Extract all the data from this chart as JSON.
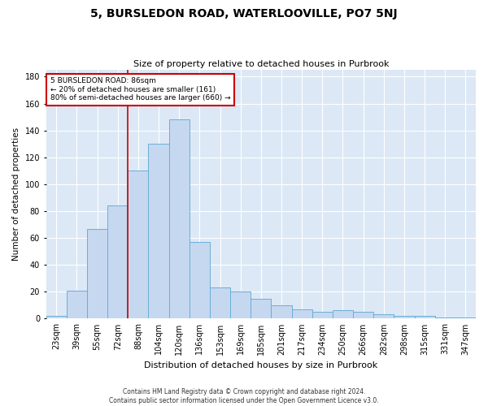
{
  "title": "5, BURSLEDON ROAD, WATERLOOVILLE, PO7 5NJ",
  "subtitle": "Size of property relative to detached houses in Purbrook",
  "xlabel": "Distribution of detached houses by size in Purbrook",
  "ylabel": "Number of detached properties",
  "categories": [
    "23sqm",
    "39sqm",
    "55sqm",
    "72sqm",
    "88sqm",
    "104sqm",
    "120sqm",
    "136sqm",
    "153sqm",
    "169sqm",
    "185sqm",
    "201sqm",
    "217sqm",
    "234sqm",
    "250sqm",
    "266sqm",
    "282sqm",
    "298sqm",
    "315sqm",
    "331sqm",
    "347sqm"
  ],
  "values": [
    2,
    21,
    67,
    84,
    110,
    130,
    148,
    57,
    23,
    20,
    15,
    10,
    7,
    5,
    6,
    5,
    3,
    2,
    2,
    1,
    1
  ],
  "bar_color": "#c5d8f0",
  "bar_edge_color": "#6baed6",
  "red_line_index": 4,
  "annotation_text_line1": "5 BURSLEDON ROAD: 86sqm",
  "annotation_text_line2": "← 20% of detached houses are smaller (161)",
  "annotation_text_line3": "80% of semi-detached houses are larger (660) →",
  "annotation_box_color": "white",
  "annotation_box_edge": "#cc0000",
  "footer1": "Contains HM Land Registry data © Crown copyright and database right 2024.",
  "footer2": "Contains public sector information licensed under the Open Government Licence v3.0.",
  "ylim": [
    0,
    185
  ],
  "yticks": [
    0,
    20,
    40,
    60,
    80,
    100,
    120,
    140,
    160,
    180
  ],
  "bg_color": "#dce8f5",
  "fig_bg": "#ffffff",
  "title_fontsize": 10,
  "subtitle_fontsize": 8,
  "ylabel_fontsize": 7.5,
  "xlabel_fontsize": 8,
  "tick_fontsize": 7,
  "footer_fontsize": 5.5
}
